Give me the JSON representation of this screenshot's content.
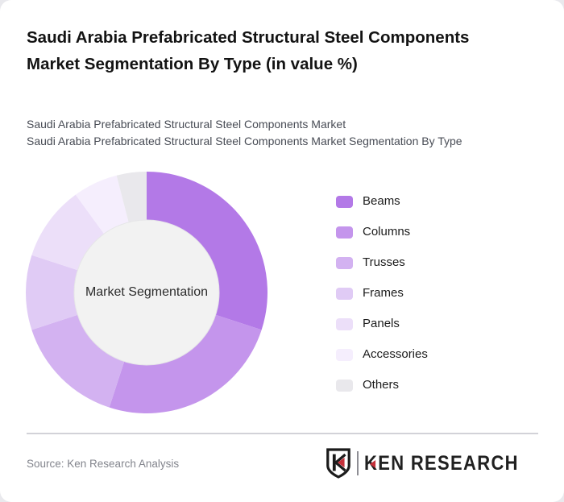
{
  "header": {
    "title": "Saudi Arabia Prefabricated Structural Steel Components Market Segmentation By Type (in value %)",
    "subtitles": {
      "line1": "Saudi Arabia Prefabricated Structural Steel Components Market",
      "line2": "Saudi Arabia Prefabricated Structural Steel Components Market Segmentation By Type"
    }
  },
  "chart_data": {
    "type": "pie",
    "variant": "donut",
    "title": "Saudi Arabia Prefabricated Structural Steel Components Market Segmentation By Type (in value %)",
    "center_label": "Market Segmentation",
    "unit": "%",
    "categories": [
      "Beams",
      "Columns",
      "Trusses",
      "Frames",
      "Panels",
      "Accessories",
      "Others"
    ],
    "values": [
      30,
      25,
      15,
      10,
      10,
      6,
      4
    ],
    "colors": [
      "#b379e7",
      "#c495ec",
      "#d3b2f1",
      "#e0cbf5",
      "#ecdff9",
      "#f5eefd",
      "#e9e8ec"
    ],
    "start_angle_deg": 0,
    "direction": "clockwise",
    "legend_position": "right",
    "inner_hole_color": "#f2f2f2",
    "grid": false
  },
  "footer": {
    "source_text": "Source: Ken Research Analysis",
    "logo": {
      "shield_letter": "K",
      "wordmark_first_letter": "K",
      "wordmark_rest": "EN RESEARCH",
      "accent_color": "#c5303a",
      "ink_color": "#1b1b1b"
    }
  }
}
